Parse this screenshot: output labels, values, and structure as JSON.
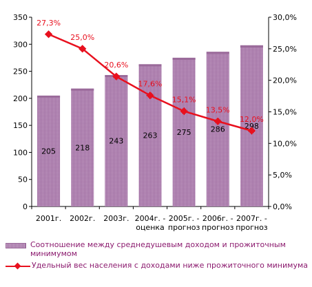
{
  "chart_data": {
    "type": "bar",
    "categories": [
      [
        "2001г.",
        ""
      ],
      [
        "2002г.",
        ""
      ],
      [
        "2003г.",
        ""
      ],
      [
        "2004г. -",
        "оценка"
      ],
      [
        "2005г. -",
        "прогноз"
      ],
      [
        "2006г. -",
        "прогноз"
      ],
      [
        "2007г. -",
        "прогноз"
      ]
    ],
    "series": [
      {
        "name": "Соотношение между среднедушевым доходом и прожиточным минимумом",
        "type": "bar",
        "axis": "left",
        "values": [
          205,
          218,
          243,
          263,
          275,
          286,
          298
        ],
        "labels": [
          "205",
          "218",
          "243",
          "263",
          "275",
          "286",
          "298"
        ],
        "color": "#a070a3"
      },
      {
        "name": "Удельный вес населения с доходами ниже прожиточного минимума",
        "type": "line",
        "axis": "right",
        "values": [
          27.3,
          25.0,
          20.6,
          17.6,
          15.1,
          13.5,
          12.0
        ],
        "labels": [
          "27,3%",
          "25,0%",
          "20,6%",
          "17,6%",
          "15,1%",
          "13,5%",
          "12,0%"
        ],
        "color": "#e8101e"
      }
    ],
    "y_left": {
      "min": 0,
      "max": 350,
      "ticks": [
        "0",
        "50",
        "100",
        "150",
        "200",
        "250",
        "300",
        "350"
      ]
    },
    "y_right": {
      "min": 0,
      "max": 30,
      "ticks": [
        "0,0%",
        "5,0%",
        "10,0%",
        "15,0%",
        "20,0%",
        "25,0%",
        "30,0%"
      ]
    },
    "legend_position": "bottom",
    "grid": false
  }
}
